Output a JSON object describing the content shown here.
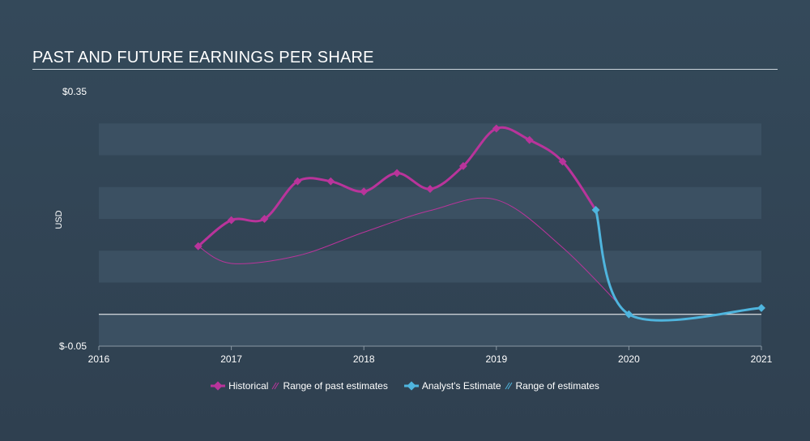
{
  "title": "PAST AND FUTURE EARNINGS PER SHARE",
  "colors": {
    "historical": "#b9349b",
    "estimate": "#4fb5de",
    "band": "#3b5062",
    "zero_line": "#ffffff"
  },
  "legend": {
    "historical": "Historical",
    "past_range": "Range of past estimates",
    "estimate": "Analyst's Estimate",
    "range": "Range of estimates"
  },
  "chart_data": {
    "type": "line",
    "ylabel": "USD",
    "ylim": [
      -0.05,
      0.35
    ],
    "xlim": [
      2016,
      2021
    ],
    "y_tick_labels": [
      {
        "value": 0.35,
        "label": "$0.35"
      },
      {
        "value": -0.05,
        "label": "$-0.05"
      }
    ],
    "x_ticks": [
      2016,
      2017,
      2018,
      2019,
      2020,
      2021
    ],
    "series": [
      {
        "name": "Historical",
        "points": [
          {
            "x": 2016.75,
            "y": 0.107
          },
          {
            "x": 2017.0,
            "y": 0.148
          },
          {
            "x": 2017.25,
            "y": 0.15
          },
          {
            "x": 2017.5,
            "y": 0.209
          },
          {
            "x": 2017.75,
            "y": 0.209
          },
          {
            "x": 2018.0,
            "y": 0.193
          },
          {
            "x": 2018.25,
            "y": 0.222
          },
          {
            "x": 2018.5,
            "y": 0.197
          },
          {
            "x": 2018.75,
            "y": 0.233
          },
          {
            "x": 2019.0,
            "y": 0.292
          },
          {
            "x": 2019.25,
            "y": 0.274
          },
          {
            "x": 2019.5,
            "y": 0.24
          },
          {
            "x": 2019.75,
            "y": 0.164
          }
        ]
      },
      {
        "name": "Range of past estimates",
        "points": [
          {
            "x": 2016.75,
            "y": 0.107
          },
          {
            "x": 2017.0,
            "y": 0.08
          },
          {
            "x": 2017.5,
            "y": 0.092
          },
          {
            "x": 2018.0,
            "y": 0.129
          },
          {
            "x": 2018.5,
            "y": 0.163
          },
          {
            "x": 2019.0,
            "y": 0.18
          },
          {
            "x": 2019.5,
            "y": 0.105
          },
          {
            "x": 2020.0,
            "y": -0.001
          }
        ]
      },
      {
        "name": "Analyst's Estimate",
        "points": [
          {
            "x": 2019.75,
            "y": 0.164
          },
          {
            "x": 2020.0,
            "y": 0.0
          },
          {
            "x": 2021.0,
            "y": 0.01
          }
        ]
      }
    ]
  }
}
